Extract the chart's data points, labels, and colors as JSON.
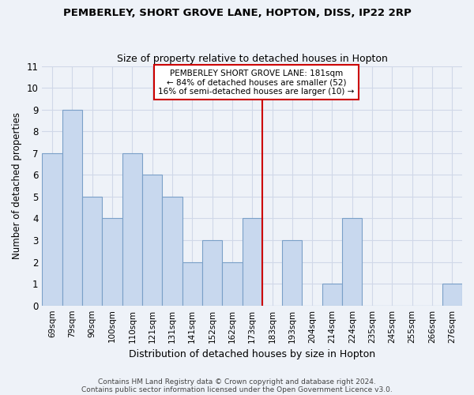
{
  "title": "PEMBERLEY, SHORT GROVE LANE, HOPTON, DISS, IP22 2RP",
  "subtitle": "Size of property relative to detached houses in Hopton",
  "xlabel": "Distribution of detached houses by size in Hopton",
  "ylabel": "Number of detached properties",
  "categories": [
    "69sqm",
    "79sqm",
    "90sqm",
    "100sqm",
    "110sqm",
    "121sqm",
    "131sqm",
    "141sqm",
    "152sqm",
    "162sqm",
    "173sqm",
    "183sqm",
    "193sqm",
    "204sqm",
    "214sqm",
    "224sqm",
    "235sqm",
    "245sqm",
    "255sqm",
    "266sqm",
    "276sqm"
  ],
  "values": [
    7,
    9,
    5,
    4,
    7,
    6,
    5,
    2,
    3,
    2,
    4,
    0,
    3,
    0,
    1,
    4,
    0,
    0,
    0,
    0,
    1
  ],
  "bar_color": "#c8d8ee",
  "bar_edge_color": "#7aa0c8",
  "highlight_color": "#cc0000",
  "highlight_line_index": 11,
  "ylim": [
    0,
    11
  ],
  "yticks": [
    0,
    1,
    2,
    3,
    4,
    5,
    6,
    7,
    8,
    9,
    10,
    11
  ],
  "grid_color": "#d0d8e8",
  "background_color": "#eef2f8",
  "plot_bg_color": "#eef2f8",
  "annotation_text": "PEMBERLEY SHORT GROVE LANE: 181sqm\n← 84% of detached houses are smaller (52)\n16% of semi-detached houses are larger (10) →",
  "footnote1": "Contains HM Land Registry data © Crown copyright and database right 2024.",
  "footnote2": "Contains public sector information licensed under the Open Government Licence v3.0."
}
